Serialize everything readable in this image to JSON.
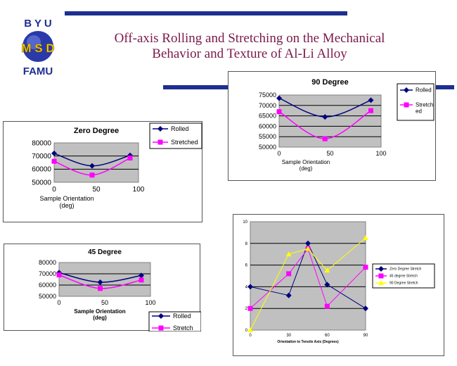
{
  "slide": {
    "title_line1": "Off-axis Rolling and Stretching on the Mechanical",
    "title_line2": "Behavior and Texture of Al-Li Alloy",
    "logo_top": "B Y U",
    "logo_mid": "M S D",
    "logo_bottom": "FAMU",
    "colors": {
      "bar": "#1f2f8f",
      "title": "#7a1a4a",
      "rolled": "#000080",
      "stretched": "#ff00ff",
      "s90": "#ffff00"
    }
  },
  "chart_data": [
    {
      "id": "zero",
      "type": "line",
      "title": "Zero Degree",
      "xlabel": "Sample Orientation\n(deg)",
      "ylabel": "",
      "x": [
        0,
        45,
        90
      ],
      "xticks": [
        "0",
        "50",
        "100"
      ],
      "xlim": [
        0,
        100
      ],
      "ylim": [
        50000,
        80000
      ],
      "yticks": [
        "50000",
        "60000",
        "70000",
        "80000"
      ],
      "series": [
        {
          "name": "Rolled",
          "values": [
            72000,
            62500,
            70500
          ]
        },
        {
          "name": "Stretched",
          "values": [
            66000,
            55500,
            68500
          ]
        }
      ],
      "legend": "right",
      "plot_fill": "#c0c0c0"
    },
    {
      "id": "d45",
      "type": "line",
      "title": "45 Degree",
      "xlabel": "Sample Orientation\n(deg)",
      "ylabel": "",
      "x": [
        0,
        45,
        90
      ],
      "xticks": [
        "0",
        "50",
        "100"
      ],
      "xlim": [
        0,
        100
      ],
      "ylim": [
        50000,
        80000
      ],
      "yticks": [
        "50000",
        "60000",
        "70000",
        "80000"
      ],
      "series": [
        {
          "name": "Rolled",
          "values": [
            71000,
            62500,
            68500
          ]
        },
        {
          "name": "Stretch",
          "values": [
            69000,
            57000,
            64500
          ]
        }
      ],
      "legend": "bottom-right",
      "plot_fill": "#c0c0c0"
    },
    {
      "id": "d90",
      "type": "line",
      "title": "90 Degree",
      "xlabel": "Sample Orientation\n(deg)",
      "ylabel": "",
      "x": [
        0,
        45,
        90
      ],
      "xticks": [
        "0",
        "50",
        "100"
      ],
      "xlim": [
        0,
        100
      ],
      "ylim": [
        50000,
        75000
      ],
      "yticks": [
        "50000",
        "55000",
        "60000",
        "65000",
        "70000",
        "75000"
      ],
      "series": [
        {
          "name": "Rolled",
          "values": [
            73500,
            64500,
            72500
          ]
        },
        {
          "name": "Stretch\ned",
          "values": [
            67000,
            54000,
            67500
          ]
        }
      ],
      "legend": "right",
      "plot_fill": "#c0c0c0"
    },
    {
      "id": "stretch",
      "type": "line",
      "title": "",
      "xlabel": "Orientation to Tensile Axis (Degrees)",
      "ylabel": "",
      "x": [
        0,
        30,
        45,
        60,
        90
      ],
      "xticks": [
        "0",
        "30",
        "60",
        "90"
      ],
      "xtick_values": [
        0,
        30,
        60,
        90
      ],
      "xlim": [
        0,
        90
      ],
      "ylim": [
        0,
        10
      ],
      "yticks": [
        "0",
        "2",
        "4",
        "6",
        "8",
        "10"
      ],
      "series": [
        {
          "name": "Zero Degree Stretch",
          "values": [
            4,
            3.2,
            8,
            4.2,
            2
          ]
        },
        {
          "name": "45 degree Stretch",
          "values": [
            2,
            5.2,
            7.5,
            2.2,
            5.8
          ]
        },
        {
          "name": "90 Degree Stretch",
          "values": [
            0,
            7,
            7.5,
            5.5,
            8.5
          ]
        }
      ],
      "legend": "right",
      "plot_fill": "#c0c0c0"
    }
  ]
}
